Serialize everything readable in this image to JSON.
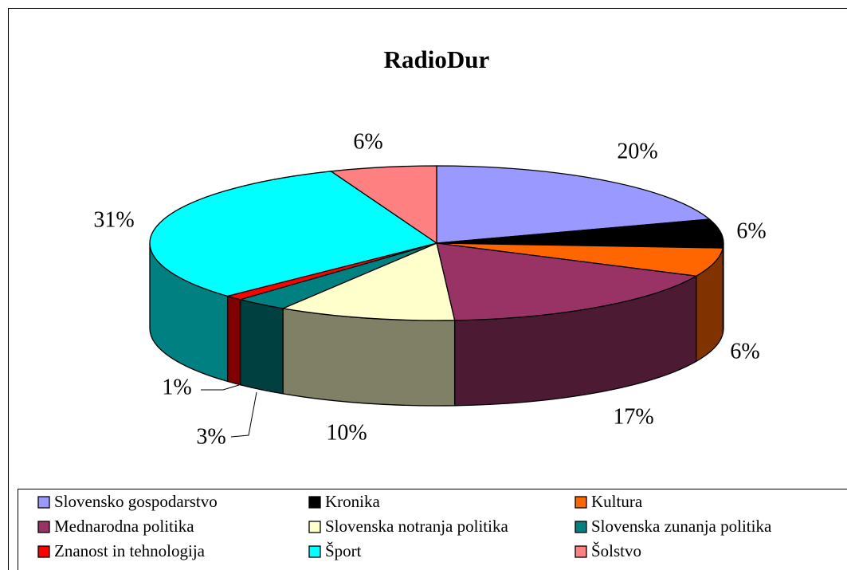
{
  "chart_data": {
    "type": "pie3d",
    "title": "RadioDur",
    "categories": [
      "Slovensko gospodarstvo",
      "Kronika",
      "Kultura",
      "Mednarodna politika",
      "Slovenska notranja politika",
      "Slovenska zunanja politika",
      "Znanost in tehnologija",
      "Šport",
      "Šolstvo"
    ],
    "values": [
      20,
      6,
      6,
      17,
      10,
      3,
      1,
      31,
      6
    ],
    "value_labels": [
      "20%",
      "6%",
      "6%",
      "17%",
      "10%",
      "3%",
      "1%",
      "31%",
      "6%"
    ],
    "colors": [
      "#9999ff",
      "#000000",
      "#ff6600",
      "#993366",
      "#ffffcc",
      "#008080",
      "#ff0000",
      "#00ffff",
      "#ff8080"
    ],
    "legend": "bottom"
  }
}
